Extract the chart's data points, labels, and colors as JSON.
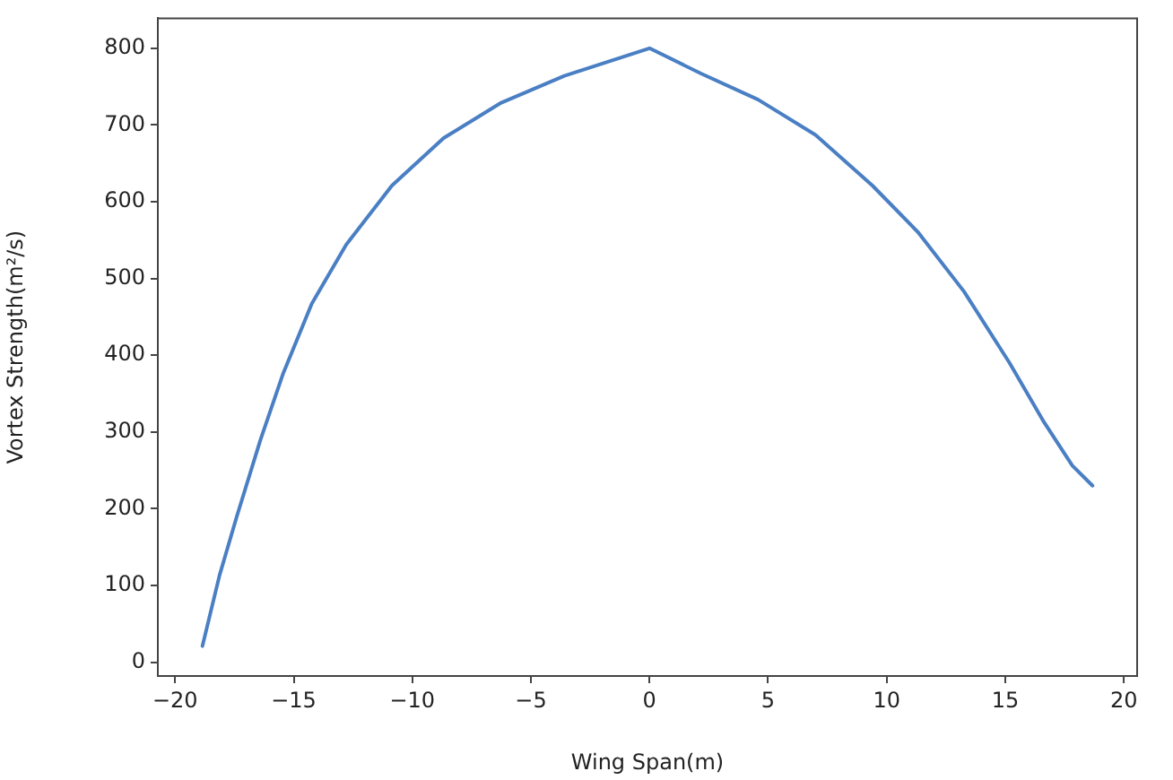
{
  "chart_data": {
    "type": "line",
    "xlabel": "Wing Span(m)",
    "ylabel": "Vortex Strength(m²/s)",
    "x": [
      -18.85,
      -18.13,
      -17.4,
      -16.4,
      -15.46,
      -14.24,
      -12.79,
      -10.86,
      -8.68,
      -6.25,
      -3.59,
      0,
      2.17,
      4.58,
      7.0,
      9.4,
      11.33,
      13.26,
      15.18,
      16.63,
      17.83,
      18.68
    ],
    "series": [
      {
        "color": "#4a7fc4",
        "values": [
          21,
          113,
          190,
          290,
          375,
          467,
          544,
          621,
          683,
          729,
          764,
          800,
          767,
          733,
          687,
          621,
          560,
          483,
          390,
          313,
          256,
          230
        ]
      }
    ],
    "xlim": [
      -20.73,
      20.56
    ],
    "xticks": [
      -20,
      -15,
      -10,
      -5,
      0,
      5,
      10,
      15,
      20
    ],
    "ylim": [
      -18,
      839
    ],
    "yticks": [
      0,
      100,
      200,
      300,
      400,
      500,
      600,
      700,
      800
    ],
    "grid": false,
    "legend": false,
    "marker": "none",
    "line_style": "solid"
  }
}
